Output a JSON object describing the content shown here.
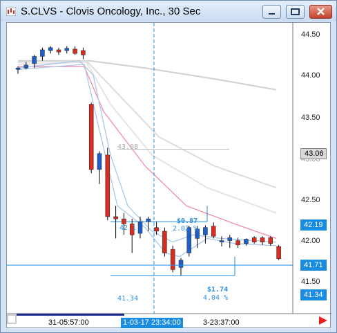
{
  "window": {
    "title": "S.CLVS - Clovis Oncology, Inc., 30 Sec"
  },
  "price_axis": {
    "labels": [
      "44.50",
      "44.00",
      "43.50",
      "43.00",
      "42.50",
      "42.00",
      "41.50"
    ],
    "tags": {
      "gray": "43.06",
      "ma": "42.19",
      "cursor": "41.71",
      "low": "41.34"
    }
  },
  "time_axis": {
    "left": "31-05:57:00",
    "cursor": "1-03-17 23:34:00",
    "right": "3-23:37:00"
  },
  "annotations": {
    "gray_level": "43.08",
    "change1": "$0.87",
    "pct1": "2.02 %",
    "level1": "42.1",
    "change2": "$1.74",
    "pct2": "4.04 %",
    "level2": "41.34"
  },
  "colors": {
    "up": "#1f5fc8",
    "down": "#d82c20",
    "accent": "#1a8ce0"
  },
  "chart_data": {
    "type": "candlestick",
    "title": "S.CLVS - Clovis Oncology, Inc., 30 Sec",
    "ylim": [
      41.1,
      44.65
    ],
    "ytick_labels": [
      "44.50",
      "44.00",
      "43.50",
      "43.00",
      "42.50",
      "42.00",
      "41.50"
    ],
    "candles": [
      {
        "o": 44.18,
        "h": 44.22,
        "l": 44.12,
        "c": 44.2
      },
      {
        "o": 44.2,
        "h": 44.28,
        "l": 44.18,
        "c": 44.24
      },
      {
        "o": 44.26,
        "h": 44.38,
        "l": 44.2,
        "c": 44.36
      },
      {
        "o": 44.36,
        "h": 44.48,
        "l": 44.3,
        "c": 44.45
      },
      {
        "o": 44.44,
        "h": 44.5,
        "l": 44.4,
        "c": 44.48
      },
      {
        "o": 44.45,
        "h": 44.48,
        "l": 44.38,
        "c": 44.42
      },
      {
        "o": 44.44,
        "h": 44.5,
        "l": 44.4,
        "c": 44.47
      },
      {
        "o": 44.46,
        "h": 44.5,
        "l": 44.38,
        "c": 44.4
      },
      {
        "o": 44.44,
        "h": 44.48,
        "l": 44.32,
        "c": 44.38
      },
      {
        "o": 43.7,
        "h": 43.72,
        "l": 42.75,
        "c": 42.8
      },
      {
        "o": 42.8,
        "h": 43.05,
        "l": 42.6,
        "c": 43.02
      },
      {
        "o": 43.0,
        "h": 43.1,
        "l": 42.1,
        "c": 42.15
      },
      {
        "o": 42.15,
        "h": 42.3,
        "l": 41.85,
        "c": 42.12
      },
      {
        "o": 42.12,
        "h": 42.2,
        "l": 41.9,
        "c": 42.05
      },
      {
        "o": 42.05,
        "h": 42.12,
        "l": 41.65,
        "c": 41.9
      },
      {
        "o": 41.92,
        "h": 42.15,
        "l": 41.85,
        "c": 42.08
      },
      {
        "o": 42.08,
        "h": 42.15,
        "l": 41.95,
        "c": 42.12
      },
      {
        "o": 42.0,
        "h": 42.08,
        "l": 41.9,
        "c": 41.95
      },
      {
        "o": 41.95,
        "h": 42.0,
        "l": 41.6,
        "c": 41.65
      },
      {
        "o": 41.7,
        "h": 41.75,
        "l": 41.38,
        "c": 41.42
      },
      {
        "o": 41.45,
        "h": 41.58,
        "l": 41.34,
        "c": 41.55
      },
      {
        "o": 41.65,
        "h": 42.02,
        "l": 41.6,
        "c": 42.0
      },
      {
        "o": 41.85,
        "h": 42.02,
        "l": 41.72,
        "c": 41.98
      },
      {
        "o": 41.9,
        "h": 42.03,
        "l": 41.78,
        "c": 42.0
      },
      {
        "o": 42.02,
        "h": 42.07,
        "l": 41.85,
        "c": 41.88
      },
      {
        "o": 41.8,
        "h": 41.88,
        "l": 41.74,
        "c": 41.82
      },
      {
        "o": 41.82,
        "h": 41.9,
        "l": 41.72,
        "c": 41.86
      },
      {
        "o": 41.82,
        "h": 41.86,
        "l": 41.72,
        "c": 41.76
      },
      {
        "o": 41.78,
        "h": 41.85,
        "l": 41.75,
        "c": 41.84
      },
      {
        "o": 41.86,
        "h": 41.88,
        "l": 41.78,
        "c": 41.8
      },
      {
        "o": 41.86,
        "h": 41.88,
        "l": 41.76,
        "c": 41.8
      },
      {
        "o": 41.86,
        "h": 41.88,
        "l": 41.75,
        "c": 41.78
      },
      {
        "o": 41.74,
        "h": 41.76,
        "l": 41.55,
        "c": 41.57
      }
    ],
    "candle_x_from": 16,
    "candle_x_step": 11.8,
    "moving_averages": [
      {
        "color": "#d0d0d0",
        "points": [
          [
            16,
            44.3
          ],
          [
            120,
            44.3
          ],
          [
            200,
            44.2
          ],
          [
            300,
            44.05
          ],
          [
            390,
            43.9
          ]
        ]
      },
      {
        "color": "#dcdcdc",
        "points": [
          [
            16,
            44.28
          ],
          [
            115,
            44.3
          ],
          [
            160,
            43.85
          ],
          [
            220,
            43.25
          ],
          [
            300,
            42.85
          ],
          [
            390,
            42.55
          ]
        ]
      },
      {
        "color": "#e4e4e4",
        "points": [
          [
            16,
            44.25
          ],
          [
            115,
            44.28
          ],
          [
            150,
            43.7
          ],
          [
            210,
            43.0
          ],
          [
            290,
            42.55
          ],
          [
            390,
            42.2
          ]
        ]
      },
      {
        "color": "#f08aa6",
        "points": [
          [
            16,
            44.22
          ],
          [
            112,
            44.22
          ],
          [
            140,
            43.6
          ],
          [
            200,
            42.85
          ],
          [
            260,
            42.3
          ],
          [
            330,
            42.05
          ],
          [
            390,
            41.85
          ]
        ]
      },
      {
        "color": "#a8c8ea",
        "points": [
          [
            16,
            44.2
          ],
          [
            105,
            44.3
          ],
          [
            125,
            44.1
          ],
          [
            150,
            43.0
          ],
          [
            175,
            42.3
          ],
          [
            210,
            41.95
          ],
          [
            240,
            41.8
          ],
          [
            270,
            41.9
          ],
          [
            310,
            41.85
          ],
          [
            390,
            41.8
          ]
        ]
      },
      {
        "color": "#a8c8ea",
        "points": [
          [
            16,
            44.18
          ],
          [
            112,
            44.25
          ],
          [
            135,
            43.3
          ],
          [
            160,
            42.3
          ],
          [
            200,
            42.0
          ],
          [
            230,
            41.65
          ],
          [
            250,
            41.6
          ],
          [
            290,
            41.85
          ],
          [
            330,
            41.78
          ],
          [
            390,
            41.75
          ]
        ]
      }
    ]
  }
}
